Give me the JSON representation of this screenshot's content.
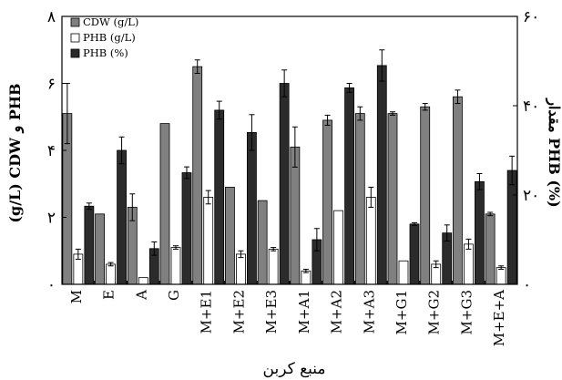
{
  "chart_data": {
    "type": "bar",
    "categories": [
      "M",
      "E",
      "A",
      "G",
      "M+E1",
      "M+E2",
      "M+E3",
      "M+A1",
      "M+A2",
      "M+A3",
      "M+G1",
      "M+G2",
      "M+G3",
      "M+E+A"
    ],
    "xlabel": "منبع کربن",
    "ylabel_left": "(g/L) CDW و PHB",
    "ylabel_right": "مقدار PHB (%)",
    "ylim_left": [
      0,
      8
    ],
    "ylim_right": [
      0,
      60
    ],
    "yticks_left": [
      "۰",
      "۲",
      "۴",
      "۶",
      "۸"
    ],
    "yticks_right": [
      "۰",
      "۲۰",
      "۴۰",
      "۶۰"
    ],
    "legend_position": "top-left",
    "series": [
      {
        "name": "CDW (g/L)",
        "axis": "left",
        "color": "#808080",
        "values": [
          5.1,
          2.1,
          2.3,
          4.8,
          6.5,
          2.9,
          2.5,
          4.1,
          4.9,
          5.1,
          5.1,
          5.3,
          5.6,
          2.1
        ],
        "errors": [
          0.9,
          0.0,
          0.4,
          0.0,
          0.2,
          0.0,
          0.0,
          0.6,
          0.15,
          0.2,
          0.05,
          0.1,
          0.2,
          0.05
        ]
      },
      {
        "name": "PHB (g/L)",
        "axis": "left",
        "color": "#ffffff",
        "values": [
          0.9,
          0.6,
          0.2,
          1.1,
          2.6,
          0.9,
          1.05,
          0.4,
          2.2,
          2.6,
          0.7,
          0.6,
          1.2,
          0.5
        ],
        "errors": [
          0.15,
          0.05,
          0.0,
          0.05,
          0.2,
          0.1,
          0.05,
          0.05,
          0.0,
          0.3,
          0.0,
          0.1,
          0.15,
          0.05
        ]
      },
      {
        "name": "PHB (%)",
        "axis": "right",
        "color": "#2b2b2b",
        "values": [
          17.5,
          30,
          8,
          25,
          39,
          34,
          45,
          10,
          44,
          49,
          13.5,
          11.5,
          23,
          25.5
        ],
        "errors": [
          0.7,
          3.0,
          1.5,
          1.3,
          2.0,
          4.0,
          3.0,
          2.5,
          1.0,
          3.5,
          0.3,
          1.8,
          1.8,
          3.2
        ]
      }
    ]
  }
}
